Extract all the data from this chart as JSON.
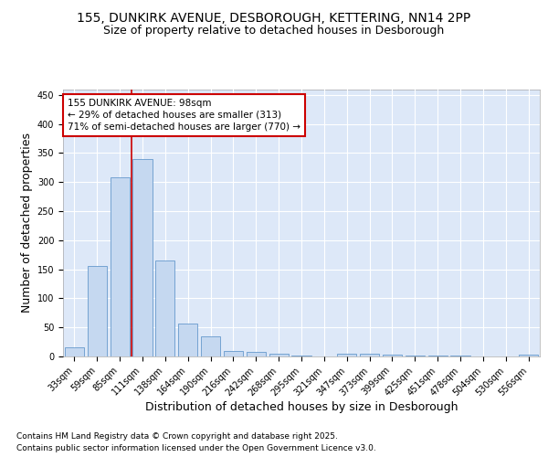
{
  "title_line1": "155, DUNKIRK AVENUE, DESBOROUGH, KETTERING, NN14 2PP",
  "title_line2": "Size of property relative to detached houses in Desborough",
  "xlabel": "Distribution of detached houses by size in Desborough",
  "ylabel": "Number of detached properties",
  "categories": [
    "33sqm",
    "59sqm",
    "85sqm",
    "111sqm",
    "138sqm",
    "164sqm",
    "190sqm",
    "216sqm",
    "242sqm",
    "268sqm",
    "295sqm",
    "321sqm",
    "347sqm",
    "373sqm",
    "399sqm",
    "425sqm",
    "451sqm",
    "478sqm",
    "504sqm",
    "530sqm",
    "556sqm"
  ],
  "values": [
    15,
    155,
    308,
    340,
    165,
    57,
    35,
    10,
    8,
    5,
    2,
    0,
    5,
    5,
    3,
    2,
    2,
    1,
    0,
    0,
    3
  ],
  "bar_color": "#c5d8f0",
  "bar_edge_color": "#6699cc",
  "bar_width": 0.85,
  "ylim": [
    0,
    460
  ],
  "yticks": [
    0,
    50,
    100,
    150,
    200,
    250,
    300,
    350,
    400,
    450
  ],
  "red_line_x": 2.5,
  "annotation_text": "155 DUNKIRK AVENUE: 98sqm\n← 29% of detached houses are smaller (313)\n71% of semi-detached houses are larger (770) →",
  "annotation_box_facecolor": "#ffffff",
  "annotation_border_color": "#cc0000",
  "fig_bg_color": "#ffffff",
  "plot_bg_color": "#dde8f8",
  "grid_color": "#ffffff",
  "title_fontsize": 10,
  "subtitle_fontsize": 9,
  "axis_label_fontsize": 9,
  "tick_fontsize": 7,
  "annotation_fontsize": 7.5,
  "footer_fontsize": 6.5,
  "footer_line1": "Contains HM Land Registry data © Crown copyright and database right 2025.",
  "footer_line2": "Contains public sector information licensed under the Open Government Licence v3.0."
}
